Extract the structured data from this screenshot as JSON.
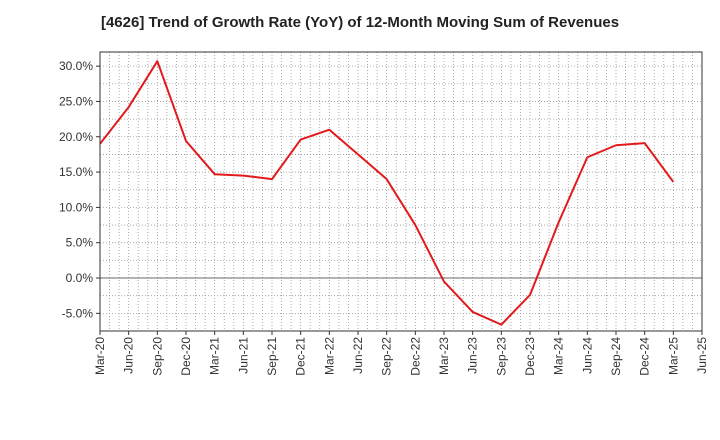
{
  "chart_data": {
    "type": "line",
    "title": "[4626]  Trend of Growth Rate (YoY) of 12-Month Moving Sum of Revenues",
    "xlabel": "",
    "ylabel": "",
    "x_ticks": [
      "Mar-20",
      "Jun-20",
      "Sep-20",
      "Dec-20",
      "Mar-21",
      "Jun-21",
      "Sep-21",
      "Dec-21",
      "Mar-22",
      "Jun-22",
      "Sep-22",
      "Dec-22",
      "Mar-23",
      "Jun-23",
      "Sep-23",
      "Dec-23",
      "Mar-24",
      "Jun-24",
      "Sep-24",
      "Dec-24",
      "Mar-25",
      "Jun-25"
    ],
    "y_ticks": [
      "30.0%",
      "25.0%",
      "20.0%",
      "15.0%",
      "10.0%",
      "5.0%",
      "0.0%",
      "-5.0%"
    ],
    "y_tick_values": [
      30,
      25,
      20,
      15,
      10,
      5,
      0,
      -5
    ],
    "ylim": [
      -7.5,
      32
    ],
    "grid": true,
    "series": [
      {
        "color": "#e31a1c",
        "x": [
          "Mar-20",
          "Jun-20",
          "Sep-20",
          "Dec-20",
          "Mar-21",
          "Jun-21",
          "Sep-21",
          "Dec-21",
          "Mar-22",
          "Jun-22",
          "Sep-22",
          "Dec-22",
          "Mar-23",
          "Jun-23",
          "Sep-23",
          "Dec-23",
          "Mar-24",
          "Jun-24",
          "Sep-24",
          "Dec-24",
          "Mar-25"
        ],
        "values": [
          19.0,
          24.2,
          30.7,
          19.4,
          14.7,
          14.5,
          14.0,
          19.6,
          21.0,
          17.5,
          14.0,
          7.5,
          -0.5,
          -4.8,
          -6.6,
          -2.4,
          7.9,
          17.1,
          18.8,
          19.1,
          13.6
        ]
      }
    ]
  }
}
